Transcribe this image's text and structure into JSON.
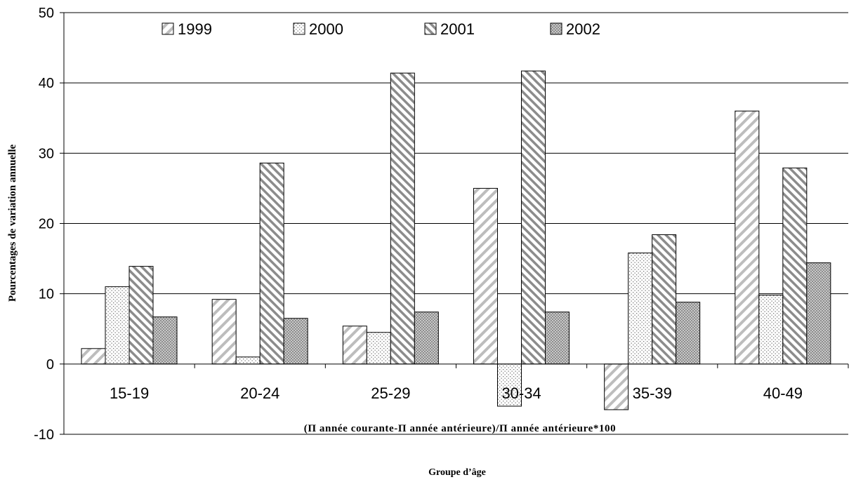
{
  "chart_data": {
    "type": "bar",
    "categories": [
      "15-19",
      "20-24",
      "25-29",
      "30-34",
      "35-39",
      "40-49"
    ],
    "series": [
      {
        "name": "1999",
        "values": [
          2.2,
          9.2,
          5.4,
          25.0,
          -6.5,
          36.0
        ],
        "pattern": "diag-wide",
        "color": "#bdbdbd"
      },
      {
        "name": "2000",
        "values": [
          11.0,
          1.0,
          4.5,
          -6.0,
          15.8,
          9.8
        ],
        "pattern": "dots",
        "color": "#9a9a9a"
      },
      {
        "name": "2001",
        "values": [
          13.9,
          28.6,
          41.4,
          41.7,
          18.4,
          27.9
        ],
        "pattern": "diag-narrow",
        "color": "#8c8c8c"
      },
      {
        "name": "2002",
        "values": [
          6.7,
          6.5,
          7.4,
          7.4,
          8.8,
          14.4
        ],
        "pattern": "crosshatch",
        "color": "#b4b4b4"
      }
    ],
    "ylim": [
      -10,
      50
    ],
    "yticks": [
      -10,
      0,
      10,
      20,
      30,
      40,
      50
    ],
    "grid": true,
    "legend_position": "top",
    "ylabel": "Pourcentages de variation annuelle",
    "annotation": "(Π année courante-Π année antérieure)/Π année antérieure*100",
    "xlabel": "Groupe d’âge"
  }
}
